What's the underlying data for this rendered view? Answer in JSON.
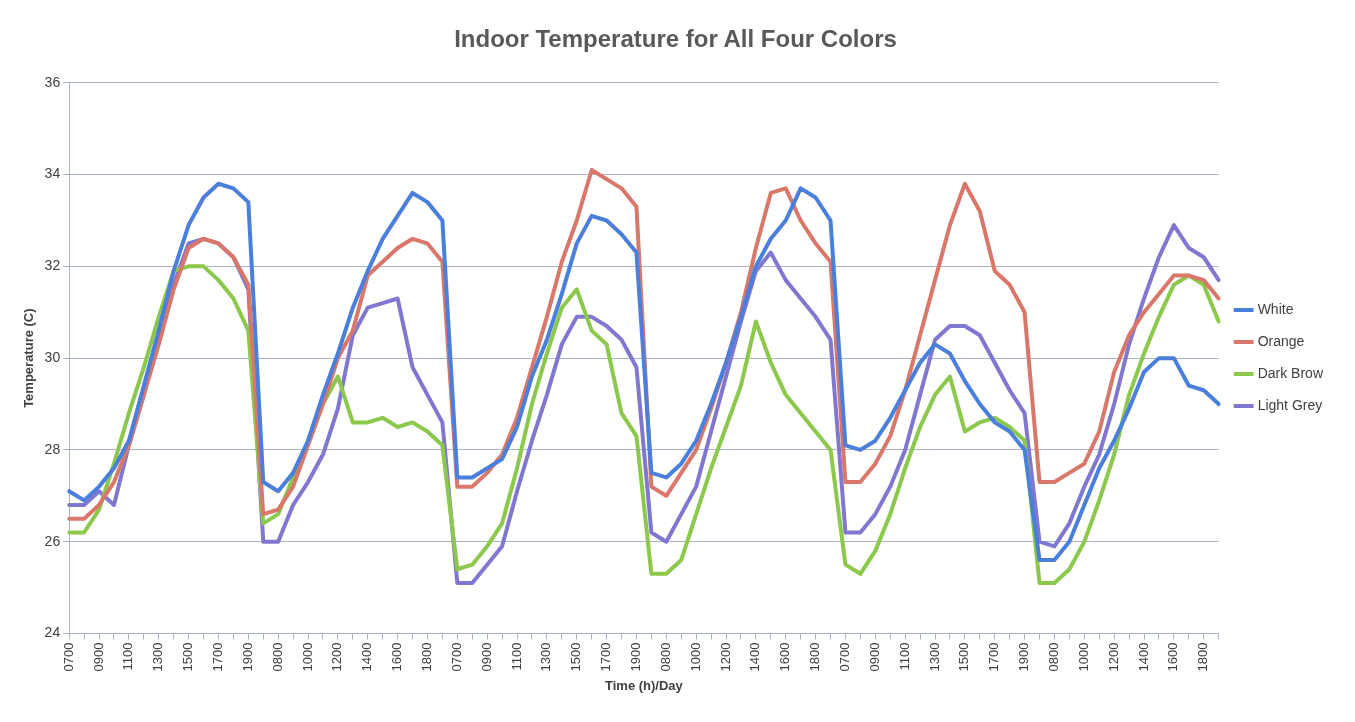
{
  "chart_data": {
    "type": "line",
    "title": "Indoor Temperature for All Four Colors",
    "xlabel": "Time (h)/Day",
    "ylabel": "Temperature (C)",
    "categories": [
      "0700",
      null,
      "0900",
      null,
      "1100",
      null,
      "1300",
      null,
      "1500",
      null,
      "1700",
      null,
      "1900",
      null,
      "0800",
      null,
      "1000",
      null,
      "1200",
      null,
      "1400",
      null,
      "1600",
      null,
      "1800",
      null,
      "0700",
      null,
      "0900",
      null,
      "1100",
      null,
      "1300",
      null,
      "1500",
      null,
      "1700",
      null,
      "1900",
      null,
      "0800",
      null,
      "1000",
      null,
      "1200",
      null,
      "1400",
      null,
      "1600",
      null,
      "1800",
      null,
      "0700",
      null,
      "0900",
      null,
      "1100",
      null,
      "1300",
      null,
      "1500",
      null,
      "1700",
      null,
      "1900",
      null,
      "0800",
      null,
      "1000",
      null,
      "1200",
      null,
      "1400",
      null,
      "1600",
      null,
      "1800",
      null
    ],
    "series": [
      {
        "name": "White",
        "color": "#4a7fdc",
        "values": [
          27.1,
          26.9,
          27.2,
          27.6,
          28.2,
          29.4,
          30.6,
          31.9,
          32.9,
          33.5,
          33.8,
          33.7,
          33.4,
          27.3,
          27.1,
          27.5,
          28.2,
          29.2,
          30.1,
          31.1,
          31.9,
          32.6,
          33.1,
          33.6,
          33.4,
          33.0,
          27.4,
          27.4,
          27.6,
          27.8,
          28.5,
          29.6,
          30.4,
          31.4,
          32.5,
          33.1,
          33.0,
          32.7,
          32.3,
          27.5,
          27.4,
          27.7,
          28.2,
          29.0,
          29.9,
          30.9,
          32.0,
          32.6,
          33.0,
          33.7,
          33.5,
          33.0,
          28.1,
          28.0,
          28.2,
          28.7,
          29.3,
          29.9,
          30.3,
          30.1,
          29.5,
          29.0,
          28.6,
          28.4,
          28.0,
          25.6,
          25.6,
          26.0,
          26.8,
          27.6,
          28.2,
          28.9,
          29.7,
          30.0,
          30.0,
          29.4,
          29.3,
          29.0
        ]
      },
      {
        "name": "Orange",
        "color": "#d9786a",
        "values": [
          26.5,
          26.5,
          26.8,
          27.3,
          28.1,
          29.2,
          30.3,
          31.5,
          32.4,
          32.6,
          32.5,
          32.2,
          31.6,
          26.6,
          26.7,
          27.2,
          28.1,
          29.0,
          30.0,
          30.6,
          31.8,
          32.1,
          32.4,
          32.6,
          32.5,
          32.1,
          27.2,
          27.2,
          27.5,
          27.9,
          28.7,
          29.8,
          30.9,
          32.1,
          33.0,
          34.1,
          33.9,
          33.7,
          33.3,
          27.2,
          27.0,
          27.5,
          28.0,
          28.9,
          29.9,
          31.0,
          32.4,
          33.6,
          33.7,
          33.0,
          32.5,
          32.1,
          27.3,
          27.3,
          27.7,
          28.3,
          29.3,
          30.5,
          31.7,
          32.9,
          33.8,
          33.2,
          31.9,
          31.6,
          31.0,
          27.3,
          27.3,
          27.5,
          27.7,
          28.4,
          29.7,
          30.5,
          31.0,
          31.4,
          31.8,
          31.8,
          31.7,
          31.3
        ]
      },
      {
        "name": "Dark Brow",
        "color": "#8cc84b",
        "values": [
          26.2,
          26.2,
          26.7,
          27.7,
          28.8,
          29.8,
          30.9,
          31.9,
          32.0,
          32.0,
          31.7,
          31.3,
          30.6,
          26.4,
          26.6,
          27.4,
          28.2,
          29.0,
          29.6,
          28.6,
          28.6,
          28.7,
          28.5,
          28.6,
          28.4,
          28.1,
          25.4,
          25.5,
          25.9,
          26.4,
          27.6,
          29.0,
          30.1,
          31.1,
          31.5,
          30.6,
          30.3,
          28.8,
          28.3,
          25.3,
          25.3,
          25.6,
          26.6,
          27.6,
          28.5,
          29.4,
          30.8,
          29.9,
          29.2,
          28.8,
          28.4,
          28.0,
          25.5,
          25.3,
          25.8,
          26.6,
          27.6,
          28.5,
          29.2,
          29.6,
          28.4,
          28.6,
          28.7,
          28.5,
          28.2,
          25.1,
          25.1,
          25.4,
          26.0,
          26.9,
          27.9,
          29.2,
          30.1,
          30.9,
          31.6,
          31.8,
          31.6,
          30.8
        ]
      },
      {
        "name": "Light Grey",
        "color": "#8078d0",
        "values": [
          26.8,
          26.8,
          27.1,
          26.8,
          28.1,
          29.2,
          30.5,
          31.6,
          32.5,
          32.6,
          32.5,
          32.2,
          31.5,
          26.0,
          26.0,
          26.8,
          27.3,
          27.9,
          28.9,
          30.5,
          31.1,
          31.2,
          31.3,
          29.8,
          29.2,
          28.6,
          25.1,
          25.1,
          25.5,
          25.9,
          27.1,
          28.2,
          29.2,
          30.3,
          30.9,
          30.9,
          30.7,
          30.4,
          29.8,
          26.2,
          26.0,
          26.6,
          27.2,
          28.4,
          29.6,
          30.8,
          31.9,
          32.3,
          31.7,
          31.3,
          30.9,
          30.4,
          26.2,
          26.2,
          26.6,
          27.2,
          28.0,
          29.2,
          30.4,
          30.7,
          30.7,
          30.5,
          29.9,
          29.3,
          28.8,
          26.0,
          25.9,
          26.4,
          27.2,
          27.9,
          29.0,
          30.3,
          31.3,
          32.2,
          32.9,
          32.4,
          32.2,
          31.7
        ]
      }
    ],
    "ylim": [
      24,
      36
    ],
    "yticks": [
      24,
      26,
      28,
      30,
      32,
      34,
      36
    ],
    "grid": "y",
    "legend": "right"
  }
}
